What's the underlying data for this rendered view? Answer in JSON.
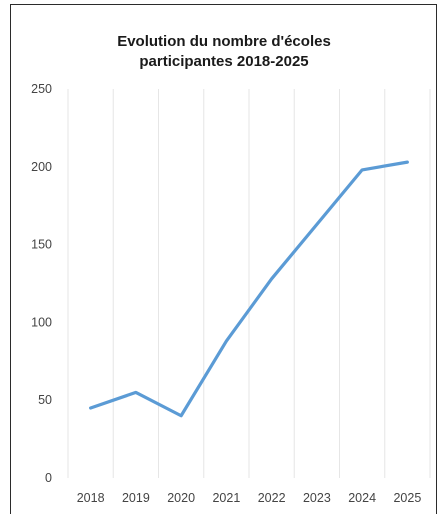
{
  "chart_data": {
    "type": "line",
    "title_lines": [
      "Evolution du nombre d'écoles",
      "participantes 2018-2025"
    ],
    "categories": [
      "2018",
      "2019",
      "2020",
      "2021",
      "2022",
      "2023",
      "2024",
      "2025"
    ],
    "series": [
      {
        "values": [
          45,
          55,
          40,
          88,
          128,
          163,
          198,
          203
        ],
        "color": "#5b9bd5"
      }
    ],
    "yticks": [
      "0",
      "50",
      "100",
      "150",
      "200",
      "250"
    ],
    "ylim": [
      0,
      250
    ],
    "grid": "vertical",
    "xlabel": "",
    "ylabel": ""
  }
}
